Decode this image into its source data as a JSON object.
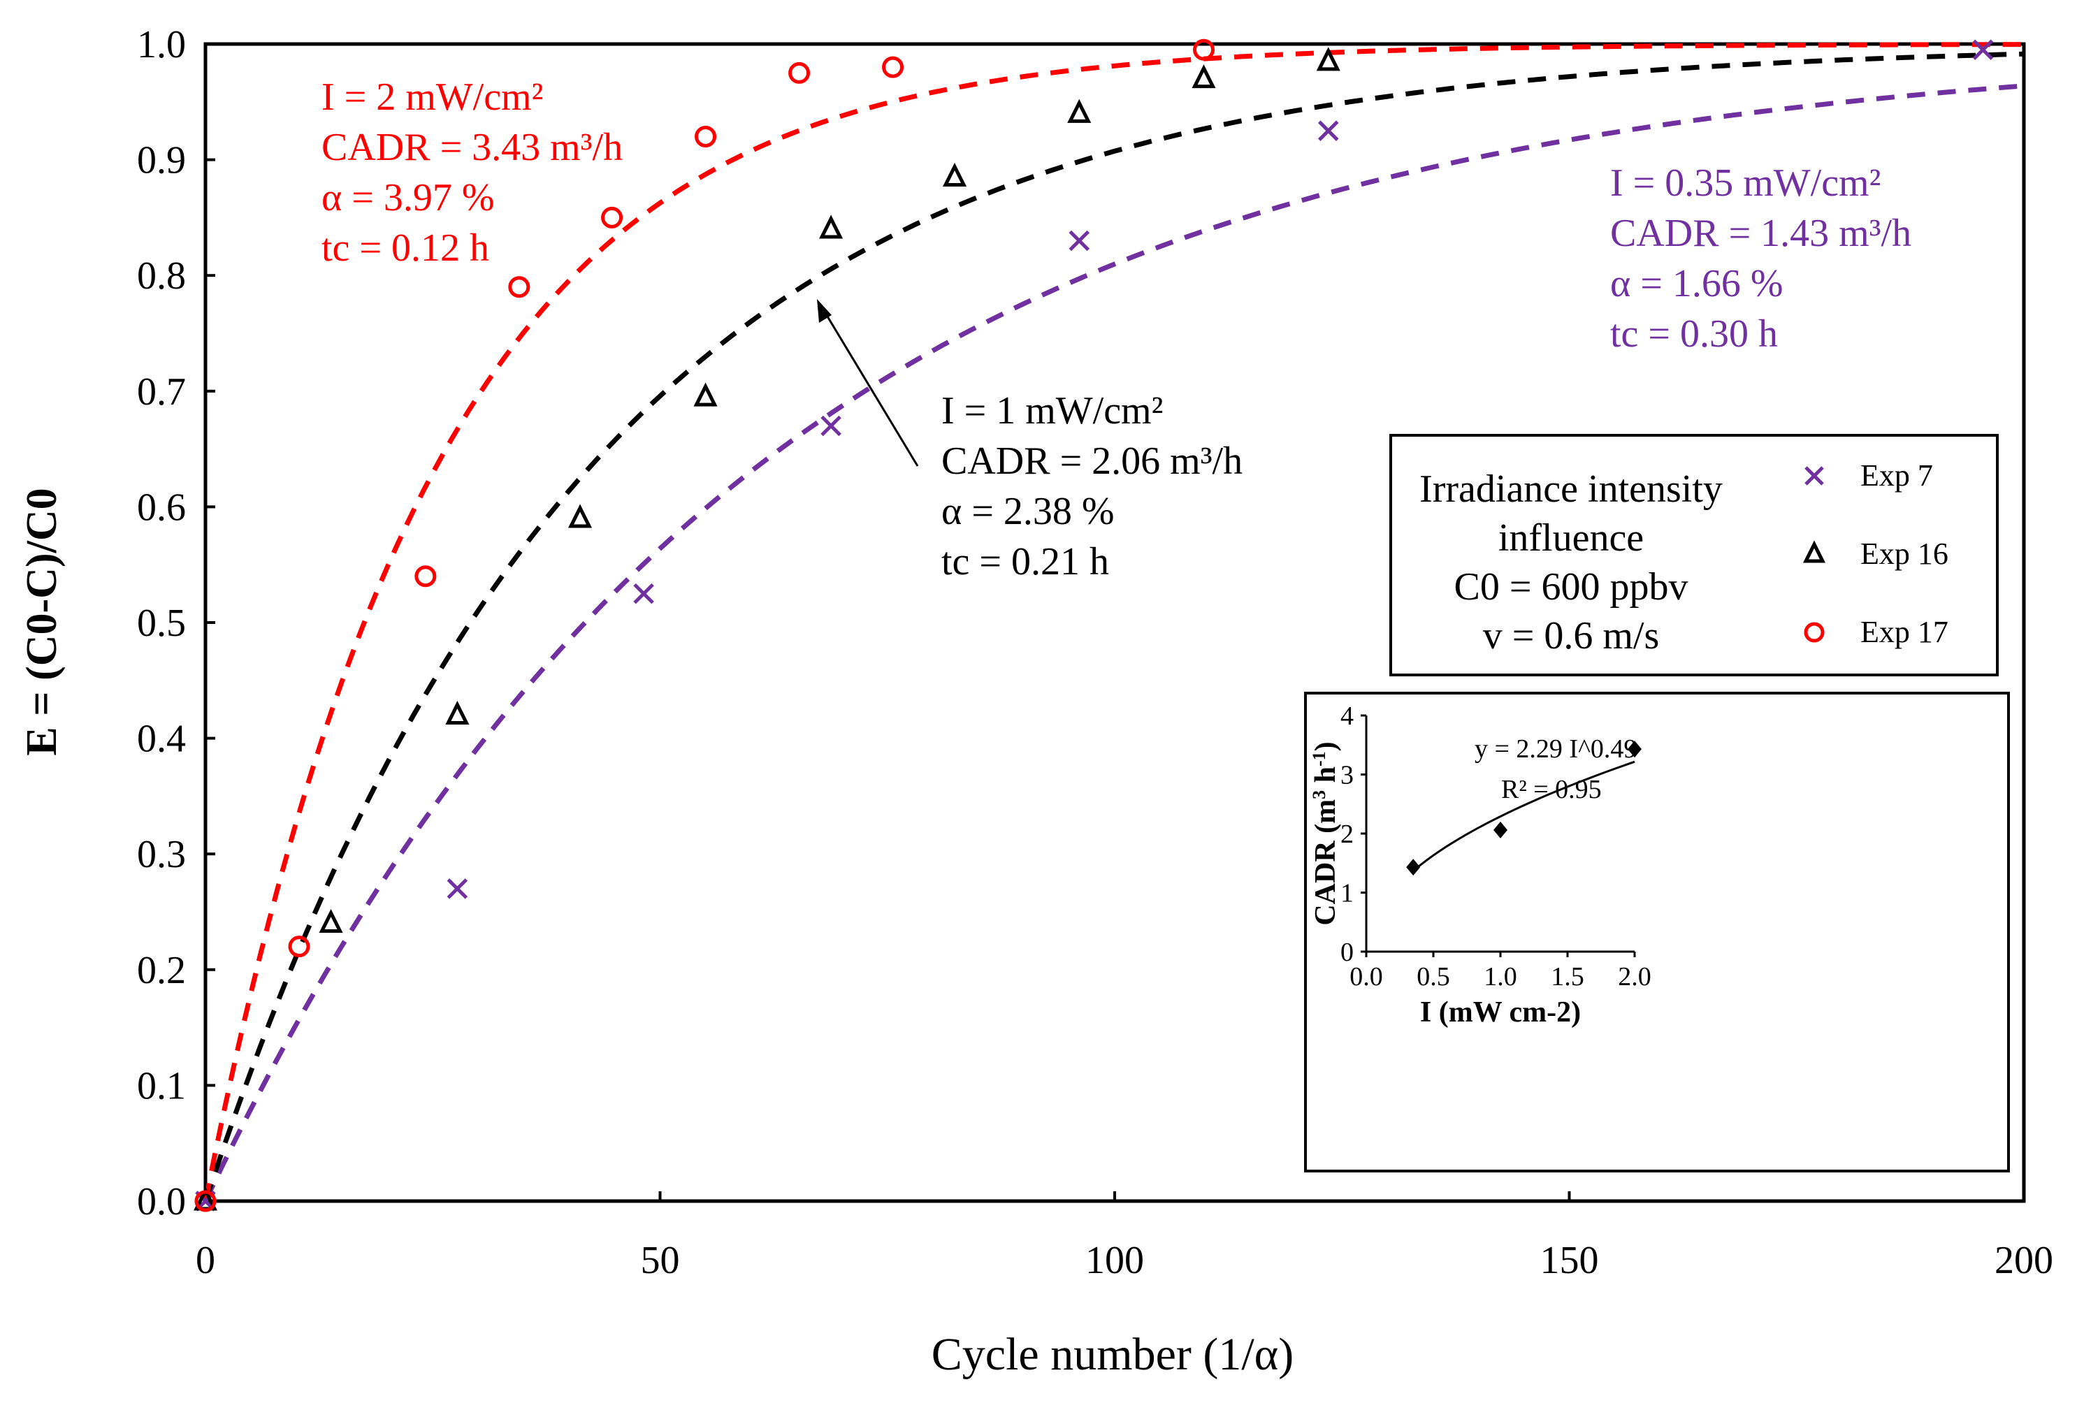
{
  "chart_data": {
    "type": "scatter",
    "xlabel": "Cycle number (1/α)",
    "ylabel": "E = (C0-C)/C0",
    "xlim": [
      0,
      200
    ],
    "ylim": [
      0,
      1.0
    ],
    "xticks": [
      "0",
      "50",
      "100",
      "150",
      "200"
    ],
    "yticks": [
      "0.0",
      "0.1",
      "0.2",
      "0.3",
      "0.4",
      "0.5",
      "0.6",
      "0.7",
      "0.8",
      "0.9",
      "1.0"
    ],
    "grid": false,
    "colors": {
      "exp7": "#7030a0",
      "exp16": "#000000",
      "exp17": "#ff0000"
    },
    "series": [
      {
        "name": "Exp 7",
        "marker": "x",
        "alpha_percent": 1.66,
        "x": [
          0,
          27.7,
          48.2,
          68.8,
          96.1,
          123.5,
          195.5
        ],
        "y": [
          0,
          0.27,
          0.525,
          0.67,
          0.83,
          0.925,
          0.995
        ]
      },
      {
        "name": "Exp 16",
        "marker": "triangle",
        "alpha_percent": 2.38,
        "x": [
          0,
          13.8,
          27.7,
          41.2,
          55,
          68.8,
          82.4,
          96.1,
          109.8,
          123.5
        ],
        "y": [
          0,
          0.24,
          0.42,
          0.59,
          0.695,
          0.84,
          0.885,
          0.94,
          0.97,
          0.985
        ]
      },
      {
        "name": "Exp 17",
        "marker": "circle",
        "alpha_percent": 3.97,
        "x": [
          0,
          10.3,
          24.2,
          34.5,
          44.7,
          55,
          65.3,
          75.6,
          109.8
        ],
        "y": [
          0,
          0.22,
          0.54,
          0.79,
          0.85,
          0.92,
          0.975,
          0.98,
          0.995
        ]
      }
    ],
    "annotations": {
      "red": [
        "I = 2 mW/cm²",
        "CADR = 3.43 m³/h",
        "α = 3.97 %",
        "tc = 0.12 h"
      ],
      "black": [
        "I = 1 mW/cm²",
        "CADR = 2.06 m³/h",
        "α = 2.38 %",
        "tc = 0.21 h"
      ],
      "purple": [
        "I = 0.35 mW/cm²",
        "CADR = 1.43 m³/h",
        "α = 1.66 %",
        "tc = 0.30 h"
      ]
    },
    "legend": {
      "title": [
        "Irradiance intensity",
        "influence",
        "C0 = 600 ppbv",
        "v = 0.6 m/s"
      ],
      "entries": [
        "Exp 7",
        "Exp 16",
        "Exp 17"
      ],
      "placement": "right"
    },
    "inset": {
      "type": "scatter",
      "xlabel": "I (mW cm-2)",
      "ylabel": "CADR (m3 h-1)",
      "xlim": [
        0,
        2
      ],
      "ylim": [
        0,
        4
      ],
      "xticks": [
        "0.0",
        "0.5",
        "1.0",
        "1.5",
        "2.0"
      ],
      "yticks": [
        "0",
        "1",
        "2",
        "3",
        "4"
      ],
      "x": [
        0.35,
        1.0,
        2.0
      ],
      "y": [
        1.43,
        2.06,
        3.43
      ],
      "fit": {
        "a": 2.29,
        "b": 0.49
      },
      "equation": "y = 2.29  I^0.49",
      "r2": "R² = 0.95"
    }
  }
}
